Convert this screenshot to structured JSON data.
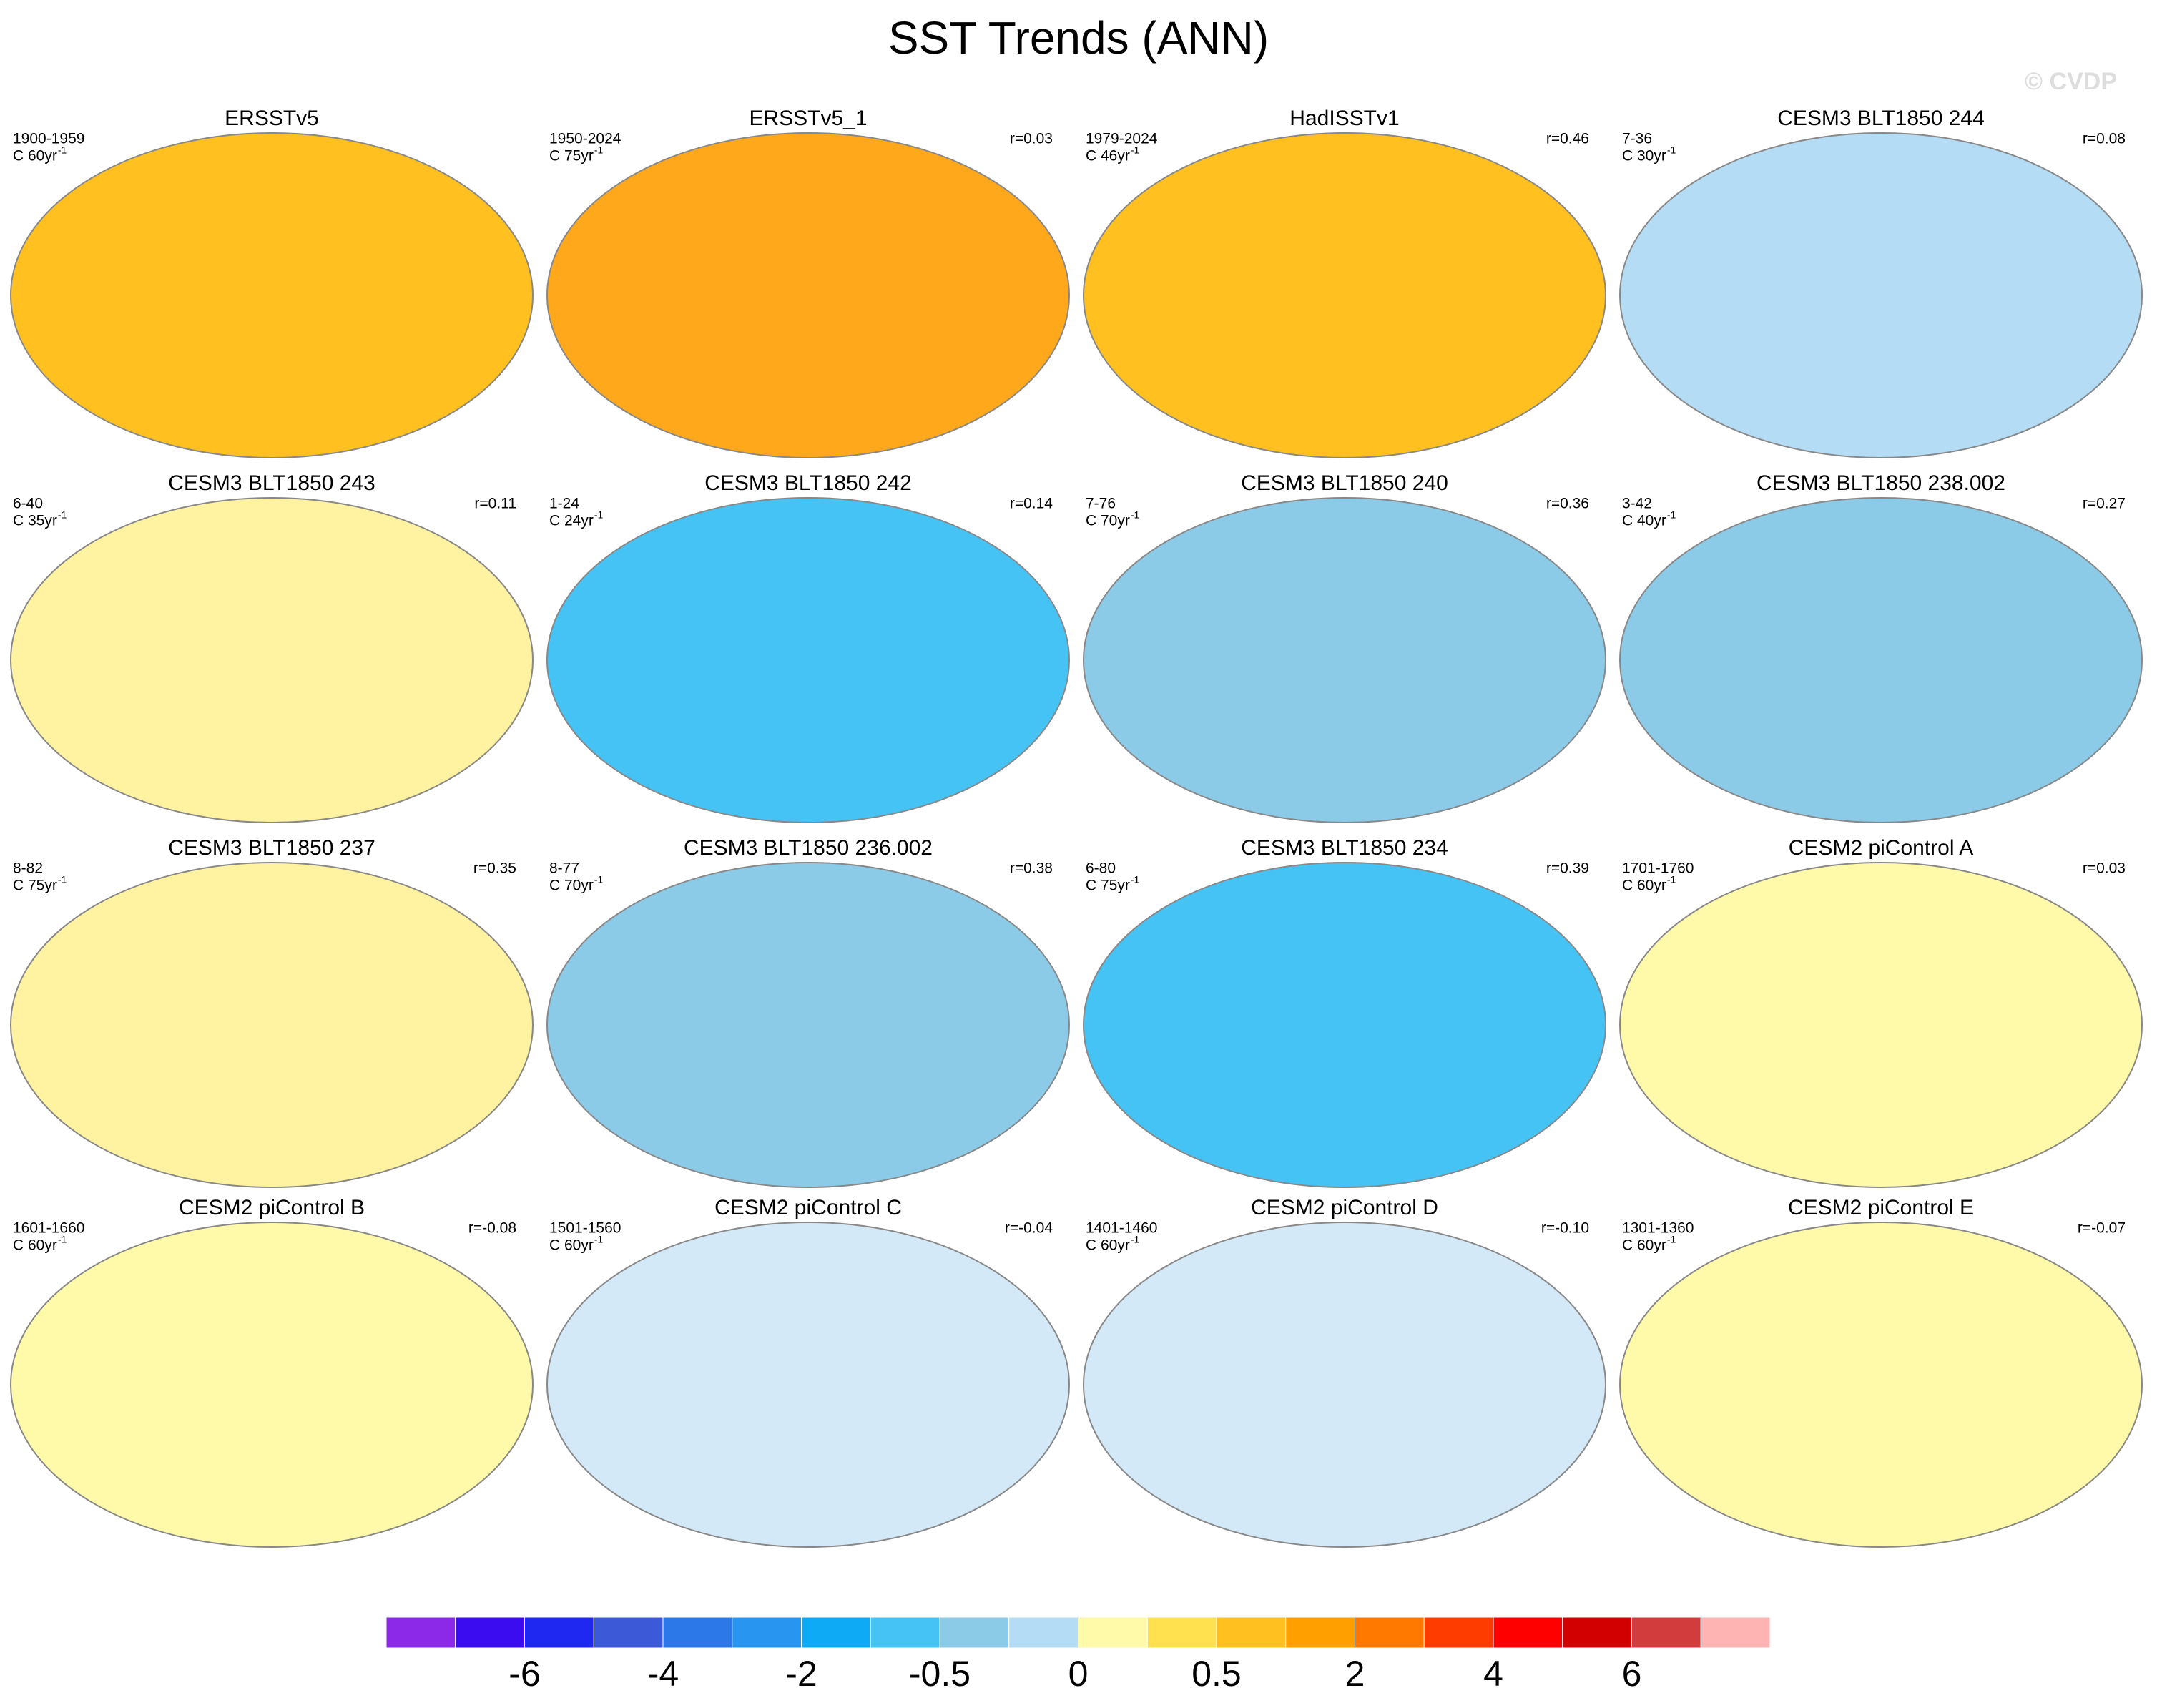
{
  "title": "SST Trends (ANN)",
  "watermark": "© CVDP",
  "unit_exponent": "-1",
  "panels": [
    {
      "title": "ERSSTv5",
      "period": "1900-1959",
      "length": "C 60yr",
      "r": null,
      "color": "#ffc020"
    },
    {
      "title": "ERSSTv5_1",
      "period": "1950-2024",
      "length": "C 75yr",
      "r": "r=0.03",
      "color": "#ffa81c"
    },
    {
      "title": "HadISSTv1",
      "period": "1979-2024",
      "length": "C 46yr",
      "r": "r=0.46",
      "color": "#ffc020"
    },
    {
      "title": "CESM3 BLT1850 244",
      "period": "7-36",
      "length": "C 30yr",
      "r": "r=0.08",
      "color": "#b4dcf5"
    },
    {
      "title": "CESM3 BLT1850 243",
      "period": "6-40",
      "length": "C 35yr",
      "r": "r=0.11",
      "color": "#fff2a0"
    },
    {
      "title": "CESM3 BLT1850 242",
      "period": "1-24",
      "length": "C 24yr",
      "r": "r=0.14",
      "color": "#46c3f5"
    },
    {
      "title": "CESM3 BLT1850 240",
      "period": "7-76",
      "length": "C 70yr",
      "r": "r=0.36",
      "color": "#8ccbe8"
    },
    {
      "title": "CESM3 BLT1850 238.002",
      "period": "3-42",
      "length": "C 40yr",
      "r": "r=0.27",
      "color": "#8ccbe8"
    },
    {
      "title": "CESM3 BLT1850 237",
      "period": "8-82",
      "length": "C 75yr",
      "r": "r=0.35",
      "color": "#fff2a0"
    },
    {
      "title": "CESM3 BLT1850 236.002",
      "period": "8-77",
      "length": "C 70yr",
      "r": "r=0.38",
      "color": "#8ccbe8"
    },
    {
      "title": "CESM3 BLT1850 234",
      "period": "6-80",
      "length": "C 75yr",
      "r": "r=0.39",
      "color": "#46c3f5"
    },
    {
      "title": "CESM2 piControl A",
      "period": "1701-1760",
      "length": "C 60yr",
      "r": "r=0.03",
      "color": "#fffaaa"
    },
    {
      "title": "CESM2 piControl B",
      "period": "1601-1660",
      "length": "C 60yr",
      "r": "r=-0.08",
      "color": "#fffaaa"
    },
    {
      "title": "CESM2 piControl C",
      "period": "1501-1560",
      "length": "C 60yr",
      "r": "r=-0.04",
      "color": "#d4e9f7"
    },
    {
      "title": "CESM2 piControl D",
      "period": "1401-1460",
      "length": "C 60yr",
      "r": "r=-0.10",
      "color": "#d4e9f7"
    },
    {
      "title": "CESM2 piControl E",
      "period": "1301-1360",
      "length": "C 60yr",
      "r": "r=-0.07",
      "color": "#fffaaa"
    }
  ],
  "colorbar": {
    "colors": [
      "#8c28e8",
      "#3b0cf0",
      "#1e28f0",
      "#3c5ad8",
      "#2d78e8",
      "#2896f0",
      "#0faaf5",
      "#46c3f5",
      "#8ccbe8",
      "#b4dcf5",
      "#fffaaa",
      "#ffe150",
      "#ffc020",
      "#ffa000",
      "#ff7800",
      "#ff3c00",
      "#ff0000",
      "#d20000",
      "#d23c3c",
      "#ffb4b4"
    ],
    "labels": [
      -6,
      -4,
      -2,
      -0.5,
      0,
      0.5,
      2,
      4,
      6
    ]
  }
}
